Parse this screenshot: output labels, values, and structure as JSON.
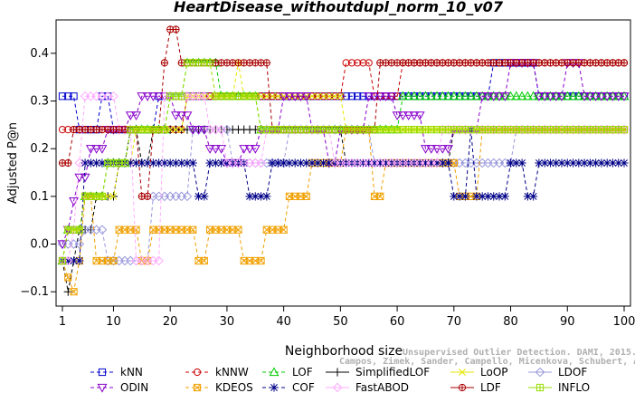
{
  "chart_data": {
    "type": "line",
    "title": "HeartDisease_withoutdupl_norm_10_v07",
    "xlabel": "Neighborhood size",
    "ylabel": "Adjusted P@n",
    "xlim": [
      1,
      100
    ],
    "ylim": [
      -0.13,
      0.47
    ],
    "xticks": [
      1,
      10,
      20,
      30,
      40,
      50,
      60,
      70,
      80,
      90,
      100
    ],
    "yticks": [
      -0.1,
      0.0,
      0.1,
      0.2,
      0.3,
      0.4
    ],
    "ytick_labels": [
      "−0.1",
      "0.0",
      "0.1",
      "0.2",
      "0.3",
      "0.4"
    ],
    "grid": false,
    "legend_position": "bottom",
    "series": [
      {
        "name": "kNN",
        "color": "#0000cc",
        "marker": "square",
        "points": [
          [
            1,
            0.31
          ],
          [
            3,
            0.31
          ],
          [
            4,
            0.24
          ],
          [
            6,
            0.24
          ],
          [
            8,
            0.31
          ],
          [
            10,
            0.24
          ],
          [
            12,
            0.24
          ],
          [
            16,
            0.24
          ],
          [
            18,
            0.31
          ],
          [
            24,
            0.31
          ],
          [
            76,
            0.31
          ],
          [
            77,
            0.38
          ],
          [
            84,
            0.38
          ],
          [
            85,
            0.31
          ],
          [
            100,
            0.31
          ]
        ]
      },
      {
        "name": "kNNW",
        "color": "#cc0000",
        "marker": "circle",
        "points": [
          [
            1,
            0.24
          ],
          [
            22,
            0.24
          ],
          [
            23,
            0.31
          ],
          [
            36,
            0.31
          ],
          [
            50,
            0.31
          ],
          [
            51,
            0.38
          ],
          [
            55,
            0.38
          ],
          [
            56,
            0.31
          ],
          [
            60,
            0.31
          ],
          [
            61,
            0.38
          ],
          [
            100,
            0.38
          ]
        ]
      },
      {
        "name": "LOF",
        "color": "#00cc00",
        "marker": "triangle-up",
        "points": [
          [
            1,
            -0.035
          ],
          [
            2,
            0.03
          ],
          [
            4,
            0.03
          ],
          [
            5,
            0.1
          ],
          [
            8,
            0.1
          ],
          [
            9,
            0.17
          ],
          [
            12,
            0.17
          ],
          [
            13,
            0.24
          ],
          [
            19,
            0.24
          ],
          [
            20,
            0.31
          ],
          [
            22,
            0.31
          ],
          [
            23,
            0.38
          ],
          [
            28,
            0.38
          ],
          [
            29,
            0.31
          ],
          [
            35,
            0.31
          ],
          [
            36,
            0.24
          ],
          [
            60,
            0.24
          ],
          [
            61,
            0.31
          ],
          [
            100,
            0.31
          ]
        ]
      },
      {
        "name": "SimplifiedLOF",
        "color": "#000000",
        "marker": "plus",
        "points": [
          [
            1,
            -0.035
          ],
          [
            2,
            -0.1
          ],
          [
            3,
            -0.035
          ],
          [
            4,
            0.03
          ],
          [
            6,
            0.03
          ],
          [
            7,
            0.1
          ],
          [
            10,
            0.1
          ],
          [
            11,
            0.17
          ],
          [
            13,
            0.24
          ],
          [
            15,
            0.17
          ],
          [
            16,
            0.17
          ],
          [
            17,
            0.24
          ],
          [
            50,
            0.24
          ],
          [
            51,
            0.17
          ],
          [
            69,
            0.17
          ],
          [
            70,
            0.24
          ],
          [
            100,
            0.24
          ]
        ]
      },
      {
        "name": "LoOP",
        "color": "#e6e600",
        "marker": "x",
        "points": [
          [
            1,
            -0.035
          ],
          [
            2,
            0.03
          ],
          [
            4,
            0.03
          ],
          [
            5,
            0.1
          ],
          [
            10,
            0.1
          ],
          [
            11,
            0.17
          ],
          [
            14,
            0.24
          ],
          [
            22,
            0.24
          ],
          [
            23,
            0.31
          ],
          [
            30,
            0.31
          ],
          [
            32,
            0.38
          ],
          [
            33,
            0.31
          ],
          [
            50,
            0.31
          ],
          [
            51,
            0.24
          ],
          [
            100,
            0.24
          ]
        ]
      },
      {
        "name": "LDOF",
        "color": "#9999dd",
        "marker": "diamond",
        "points": [
          [
            1,
            0.0
          ],
          [
            5,
            0.03
          ],
          [
            8,
            0.03
          ],
          [
            9,
            -0.035
          ],
          [
            15,
            -0.035
          ],
          [
            17,
            0.1
          ],
          [
            23,
            0.1
          ],
          [
            24,
            0.24
          ],
          [
            30,
            0.24
          ],
          [
            31,
            0.17
          ],
          [
            40,
            0.17
          ],
          [
            41,
            0.24
          ],
          [
            55,
            0.24
          ],
          [
            56,
            0.17
          ],
          [
            80,
            0.17
          ],
          [
            81,
            0.24
          ],
          [
            100,
            0.24
          ]
        ]
      },
      {
        "name": "ODIN",
        "color": "#8800cc",
        "marker": "triangle-down",
        "points": [
          [
            1,
            0.0
          ],
          [
            2,
            0.03
          ],
          [
            3,
            0.09
          ],
          [
            4,
            0.14
          ],
          [
            6,
            0.2
          ],
          [
            9,
            0.24
          ],
          [
            11,
            0.24
          ],
          [
            13,
            0.27
          ],
          [
            15,
            0.31
          ],
          [
            18,
            0.31
          ],
          [
            21,
            0.27
          ],
          [
            24,
            0.24
          ],
          [
            27,
            0.2
          ],
          [
            30,
            0.17
          ],
          [
            33,
            0.2
          ],
          [
            36,
            0.24
          ],
          [
            40,
            0.31
          ],
          [
            45,
            0.24
          ],
          [
            48,
            0.17
          ],
          [
            50,
            0.24
          ],
          [
            55,
            0.31
          ],
          [
            60,
            0.27
          ],
          [
            65,
            0.2
          ],
          [
            70,
            0.24
          ],
          [
            75,
            0.31
          ],
          [
            80,
            0.38
          ],
          [
            85,
            0.31
          ],
          [
            90,
            0.38
          ],
          [
            93,
            0.31
          ],
          [
            100,
            0.31
          ]
        ]
      },
      {
        "name": "KDEOS",
        "color": "#f0a000",
        "marker": "square-x",
        "points": [
          [
            1,
            -0.035
          ],
          [
            2,
            -0.07
          ],
          [
            3,
            -0.1
          ],
          [
            4,
            -0.035
          ],
          [
            5,
            0.1
          ],
          [
            6,
            0.1
          ],
          [
            7,
            -0.035
          ],
          [
            10,
            -0.035
          ],
          [
            11,
            0.03
          ],
          [
            15,
            -0.035
          ],
          [
            17,
            0.03
          ],
          [
            24,
            0.03
          ],
          [
            25,
            -0.035
          ],
          [
            27,
            0.03
          ],
          [
            32,
            0.03
          ],
          [
            33,
            -0.035
          ],
          [
            36,
            -0.035
          ],
          [
            37,
            0.03
          ],
          [
            40,
            0.03
          ],
          [
            41,
            0.1
          ],
          [
            44,
            0.1
          ],
          [
            45,
            0.17
          ],
          [
            50,
            0.17
          ],
          [
            51,
            0.24
          ],
          [
            55,
            0.24
          ],
          [
            56,
            0.1
          ],
          [
            58,
            0.17
          ],
          [
            70,
            0.17
          ],
          [
            71,
            0.1
          ],
          [
            74,
            0.1
          ],
          [
            75,
            0.24
          ],
          [
            100,
            0.24
          ]
        ]
      },
      {
        "name": "COF",
        "color": "#000088",
        "marker": "asterisk",
        "points": [
          [
            1,
            -0.035
          ],
          [
            4,
            -0.035
          ],
          [
            5,
            0.17
          ],
          [
            24,
            0.17
          ],
          [
            25,
            0.1
          ],
          [
            27,
            0.17
          ],
          [
            33,
            0.17
          ],
          [
            34,
            0.1
          ],
          [
            37,
            0.1
          ],
          [
            38,
            0.17
          ],
          [
            69,
            0.17
          ],
          [
            70,
            0.1
          ],
          [
            72,
            0.1
          ],
          [
            73,
            0.24
          ],
          [
            74,
            0.1
          ],
          [
            79,
            0.1
          ],
          [
            80,
            0.17
          ],
          [
            82,
            0.17
          ],
          [
            83,
            0.1
          ],
          [
            85,
            0.17
          ],
          [
            100,
            0.17
          ]
        ]
      },
      {
        "name": "FastABOD",
        "color": "#ffaaff",
        "marker": "diamond",
        "points": [
          [
            1,
            -0.035
          ],
          [
            2,
            -0.035
          ],
          [
            3,
            0.03
          ],
          [
            4,
            0.17
          ],
          [
            5,
            0.31
          ],
          [
            10,
            0.31
          ],
          [
            11,
            0.24
          ],
          [
            13,
            0.24
          ],
          [
            14,
            -0.035
          ],
          [
            18,
            -0.035
          ],
          [
            19,
            0.31
          ],
          [
            26,
            0.31
          ],
          [
            27,
            0.24
          ],
          [
            29,
            0.24
          ],
          [
            30,
            0.17
          ],
          [
            36,
            0.17
          ],
          [
            37,
            0.24
          ],
          [
            48,
            0.24
          ],
          [
            49,
            0.17
          ],
          [
            67,
            0.17
          ],
          [
            68,
            0.24
          ],
          [
            100,
            0.24
          ]
        ]
      },
      {
        "name": "LDF",
        "color": "#aa0000",
        "marker": "circle-plus",
        "points": [
          [
            1,
            0.17
          ],
          [
            2,
            0.17
          ],
          [
            3,
            0.24
          ],
          [
            14,
            0.24
          ],
          [
            15,
            0.1
          ],
          [
            16,
            0.1
          ],
          [
            17,
            0.24
          ],
          [
            19,
            0.38
          ],
          [
            20,
            0.45
          ],
          [
            21,
            0.45
          ],
          [
            22,
            0.38
          ],
          [
            37,
            0.38
          ],
          [
            38,
            0.24
          ],
          [
            56,
            0.24
          ],
          [
            57,
            0.38
          ],
          [
            100,
            0.38
          ]
        ]
      },
      {
        "name": "INFLO",
        "color": "#99dd00",
        "marker": "x-square",
        "points": [
          [
            1,
            -0.035
          ],
          [
            2,
            0.03
          ],
          [
            4,
            0.03
          ],
          [
            5,
            0.1
          ],
          [
            8,
            0.1
          ],
          [
            9,
            0.17
          ],
          [
            12,
            0.17
          ],
          [
            13,
            0.24
          ],
          [
            19,
            0.24
          ],
          [
            20,
            0.31
          ],
          [
            22,
            0.31
          ],
          [
            23,
            0.38
          ],
          [
            27,
            0.38
          ],
          [
            28,
            0.31
          ],
          [
            35,
            0.31
          ],
          [
            36,
            0.24
          ],
          [
            100,
            0.24
          ]
        ]
      }
    ]
  },
  "legend": {
    "items": [
      {
        "label": "kNN",
        "color": "#0000cc",
        "marker": "square",
        "dash": "4,3"
      },
      {
        "label": "kNNW",
        "color": "#cc0000",
        "marker": "circle",
        "dash": "4,3"
      },
      {
        "label": "LOF",
        "color": "#00cc00",
        "marker": "triangle-up",
        "dash": "4,3"
      },
      {
        "label": "SimplifiedLOF",
        "color": "#000000",
        "marker": "plus",
        "dash": ""
      },
      {
        "label": "LoOP",
        "color": "#e6e600",
        "marker": "x",
        "dash": ""
      },
      {
        "label": "LDOF",
        "color": "#9999dd",
        "marker": "diamond",
        "dash": ""
      },
      {
        "label": "ODIN",
        "color": "#8800cc",
        "marker": "triangle-down",
        "dash": "4,3"
      },
      {
        "label": "KDEOS",
        "color": "#f0a000",
        "marker": "square-x",
        "dash": "4,3"
      },
      {
        "label": "COF",
        "color": "#000088",
        "marker": "asterisk",
        "dash": "4,3"
      },
      {
        "label": "FastABOD",
        "color": "#ffaaff",
        "marker": "diamond",
        "dash": ""
      },
      {
        "label": "LDF",
        "color": "#aa0000",
        "marker": "circle-plus",
        "dash": ""
      },
      {
        "label": "INFLO",
        "color": "#99dd00",
        "marker": "x-square",
        "dash": ""
      }
    ]
  },
  "watermark": {
    "line1": "Unsupervised Outlier Detection. DAMI, 2015.",
    "line2": "Campos, Zimek, Sander, Campello, Micenkova, Schubert, Assent, Houle"
  }
}
